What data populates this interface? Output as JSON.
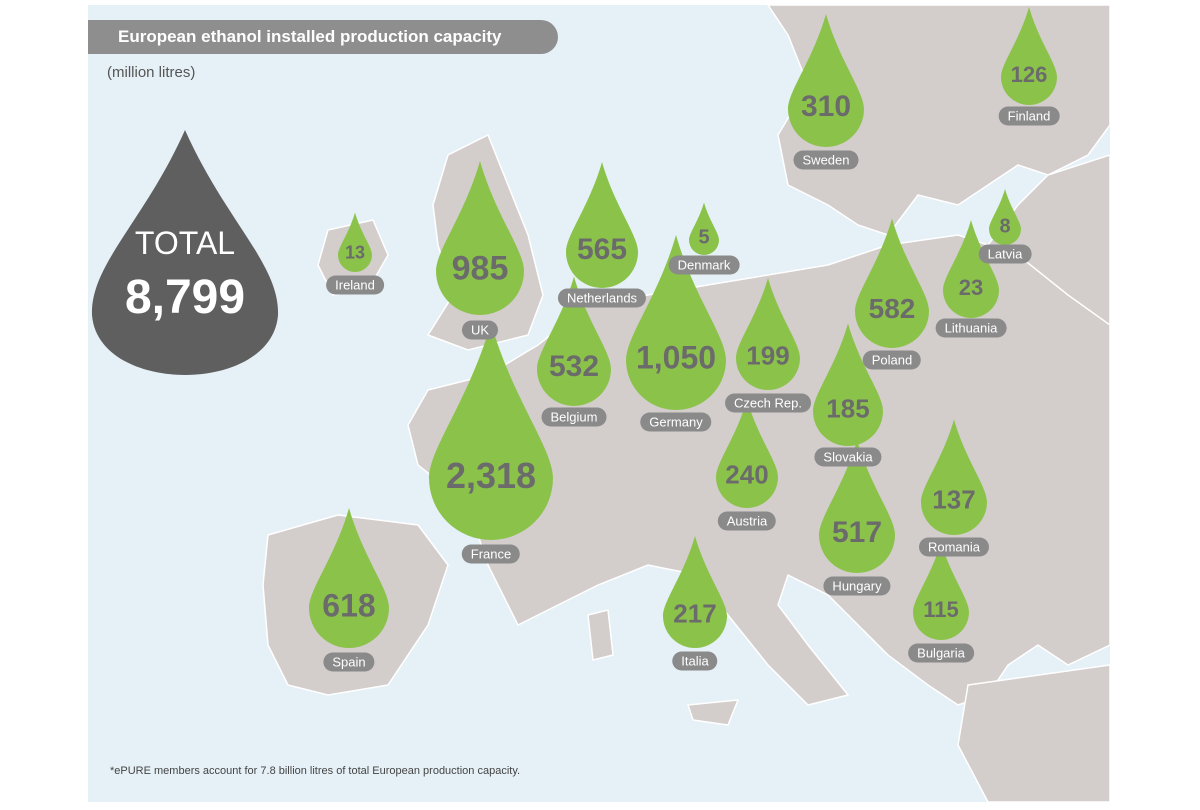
{
  "title": "European ethanol installed production capacity",
  "subtitle": "(million litres)",
  "total": {
    "label": "TOTAL",
    "value": "8,799"
  },
  "footnote": "*ePURE members account for 7.8 billion litres of total European production capacity.",
  "colors": {
    "sea": "#e6f1f7",
    "land": "#d3cdcc",
    "drop": "#8bc34a",
    "total_drop": "#5f5f5f",
    "pill": "#8a8a8a"
  },
  "countries": [
    {
      "name": "Ireland",
      "value": "13"
    },
    {
      "name": "UK",
      "value": "985"
    },
    {
      "name": "Netherlands",
      "value": "565"
    },
    {
      "name": "Denmark",
      "value": "5"
    },
    {
      "name": "Sweden",
      "value": "310"
    },
    {
      "name": "Finland",
      "value": "126"
    },
    {
      "name": "Latvia",
      "value": "8"
    },
    {
      "name": "Lithuania",
      "value": "23"
    },
    {
      "name": "Poland",
      "value": "582"
    },
    {
      "name": "Belgium",
      "value": "532"
    },
    {
      "name": "Germany",
      "value": "1,050"
    },
    {
      "name": "Czech Rep.",
      "value": "199"
    },
    {
      "name": "Slovakia",
      "value": "185"
    },
    {
      "name": "France",
      "value": "2,318"
    },
    {
      "name": "Austria",
      "value": "240"
    },
    {
      "name": "Hungary",
      "value": "517"
    },
    {
      "name": "Romania",
      "value": "137"
    },
    {
      "name": "Spain",
      "value": "618"
    },
    {
      "name": "Italia",
      "value": "217"
    },
    {
      "name": "Bulgaria",
      "value": "115"
    }
  ]
}
